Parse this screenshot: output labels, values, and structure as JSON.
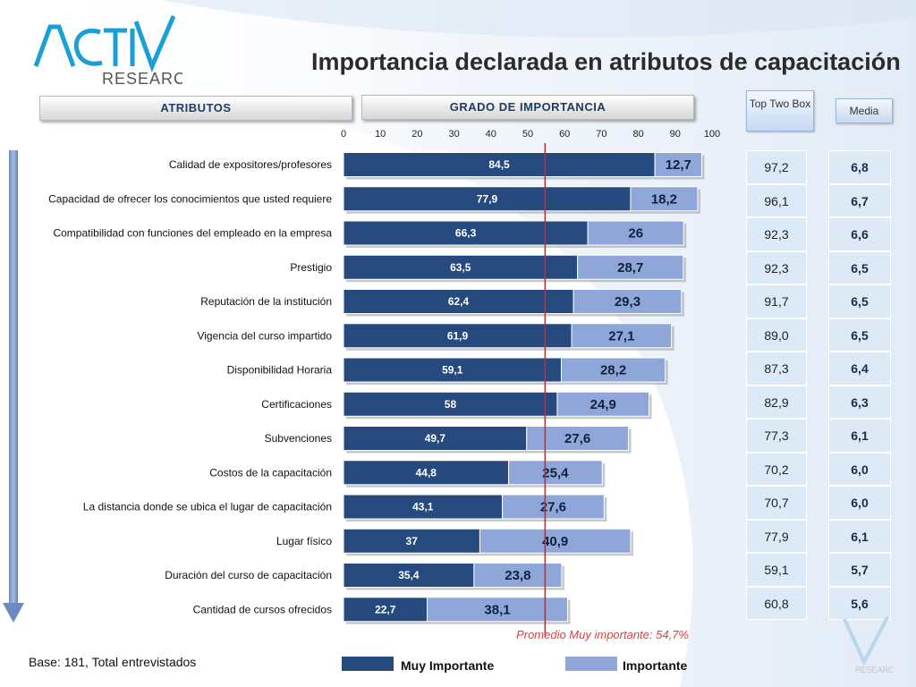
{
  "header": {
    "logo_main": "ACTIVA",
    "logo_sub": "RESEARCH",
    "title": "Importancia declarada en atributos de capacitación",
    "col_atributos": "ATRIBUTOS",
    "col_grado": "GRADO DE IMPORTANCIA",
    "col_top_two": "Top Two Box",
    "col_media": "Media"
  },
  "colors": {
    "muy_importante": "#264a7e",
    "importante": "#8ea6d8",
    "average_line": "#cc2b2b",
    "average_text": "#e04040"
  },
  "chart_data": {
    "type": "bar",
    "orientation": "horizontal",
    "stacked": true,
    "categories": [
      "Calidad de expositores/profesores",
      "Capacidad de ofrecer los conocimientos que usted requiere",
      "Compatibilidad con funciones del empleado en la empresa",
      "Prestigio",
      "Reputación de la institución",
      "Vigencia del curso impartido",
      "Disponibilidad Horaria",
      "Certificaciones",
      "Subvenciones",
      "Costos de la capacitación",
      "La distancia donde se ubica el lugar de capacitación",
      "Lugar físico",
      "Duración del curso de capacitación",
      "Cantidad de cursos ofrecidos"
    ],
    "series": [
      {
        "name": "Muy Importante",
        "values": [
          84.5,
          77.9,
          66.3,
          63.5,
          62.4,
          61.9,
          59.1,
          58,
          49.7,
          44.8,
          43.1,
          37,
          35.4,
          22.7
        ]
      },
      {
        "name": "Importante",
        "values": [
          12.7,
          18.2,
          26,
          28.7,
          29.3,
          27.1,
          28.2,
          24.9,
          27.6,
          25.4,
          27.6,
          40.9,
          23.8,
          38.1
        ]
      }
    ],
    "value_labels": {
      "muy_importante": [
        "84,5",
        "77,9",
        "66,3",
        "63,5",
        "62,4",
        "61,9",
        "59,1",
        "58",
        "49,7",
        "44,8",
        "43,1",
        "37",
        "35,4",
        "22,7"
      ],
      "importante": [
        "12,7",
        "18,2",
        "26",
        "28,7",
        "29,3",
        "27,1",
        "28,2",
        "24,9",
        "27,6",
        "25,4",
        "27,6",
        "40,9",
        "23,8",
        "38,1"
      ]
    },
    "x_ticks": [
      "0",
      "10",
      "20",
      "30",
      "40",
      "50",
      "60",
      "70",
      "80",
      "90",
      "100"
    ],
    "xlim": [
      0,
      100
    ],
    "average_line": {
      "value": 54.7,
      "label": "Promedio Muy importante: 54,7%"
    },
    "legend": [
      "Muy Importante",
      "Importante"
    ],
    "legend_position": "bottom"
  },
  "table": {
    "top_two_box": [
      "97,2",
      "96,1",
      "92,3",
      "92,3",
      "91,7",
      "89,0",
      "87,3",
      "82,9",
      "77,3",
      "70,2",
      "70,7",
      "77,9",
      "59,1",
      "60,8"
    ],
    "media": [
      "6,8",
      "6,7",
      "6,6",
      "6,5",
      "6,5",
      "6,5",
      "6,4",
      "6,3",
      "6,1",
      "6,0",
      "6,0",
      "6,1",
      "5,7",
      "5,6"
    ]
  },
  "footer": {
    "base": "Base: 181, Total entrevistados",
    "watermark": "RESEARCH"
  }
}
